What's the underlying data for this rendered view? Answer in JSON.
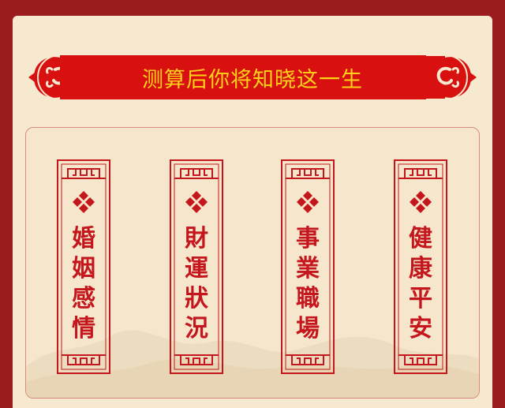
{
  "banner": {
    "title": "测算后你将知晓这一生"
  },
  "colors": {
    "background": "#9b1c1f",
    "card": "#f7e9cf",
    "banner": "#d8100f",
    "banner_text": "#ffd21a",
    "accent": "#c4161c"
  },
  "scrolls": [
    {
      "chars": [
        "婚",
        "姻",
        "感",
        "情"
      ]
    },
    {
      "chars": [
        "財",
        "運",
        "狀",
        "況"
      ]
    },
    {
      "chars": [
        "事",
        "業",
        "職",
        "場"
      ]
    },
    {
      "chars": [
        "健",
        "康",
        "平",
        "安"
      ]
    }
  ],
  "icons": {
    "ornament": "diamond-cluster-icon",
    "banner_end": "cloud-icon"
  }
}
